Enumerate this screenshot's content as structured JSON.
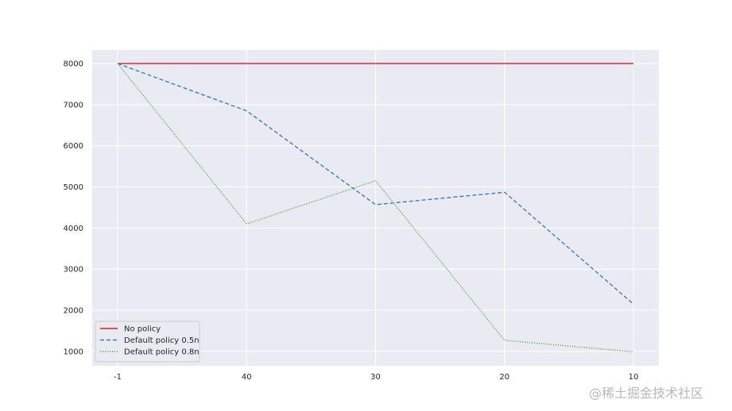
{
  "chart_data": {
    "type": "line",
    "categories": [
      "-1",
      "40",
      "30",
      "20",
      "10"
    ],
    "series": [
      {
        "name": "No policy",
        "values": [
          8000,
          8000,
          8000,
          8000,
          8000
        ],
        "color": "#e41a1c",
        "style": "solid"
      },
      {
        "name": "Default policy 0.5n",
        "values": [
          8000,
          6850,
          4570,
          4870,
          2150
        ],
        "color": "#377eb8",
        "style": "dashed"
      },
      {
        "name": "Default policy 0.8n",
        "values": [
          8000,
          4100,
          5150,
          1270,
          990
        ],
        "color": "#4daf4a",
        "style": "dotted"
      }
    ],
    "yticks": [
      1000,
      2000,
      3000,
      4000,
      5000,
      6000,
      7000,
      8000
    ],
    "ylim": [
      650,
      8330
    ],
    "grid": true,
    "legend_position": "lower-left",
    "background": "#eaeaf2",
    "title": "",
    "xlabel": "",
    "ylabel": ""
  },
  "watermark": "@稀土掘金技术社区"
}
